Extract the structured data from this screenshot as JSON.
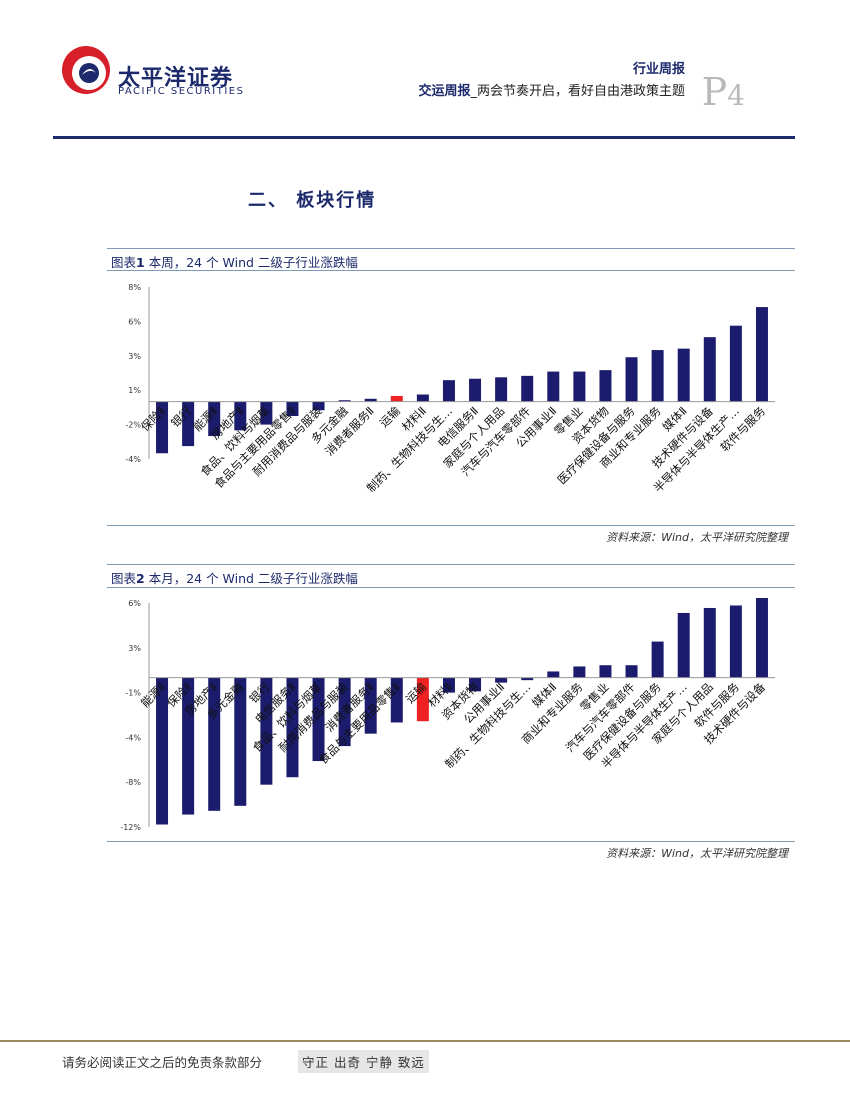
{
  "header": {
    "brand_cn": "太平洋证券",
    "brand_en": "PACIFIC SECURITIES",
    "report_type": "行业周报",
    "report_title_bold": "交运周报",
    "report_title_rest": "_两会节奏开启，看好自由港政策主题",
    "page_label": "P",
    "page_number": "4"
  },
  "section_heading": "二、 板块行情",
  "figure1": {
    "caption_prefix": "图表",
    "caption_num": "1",
    "caption_text": " 本周，24 个 Wind 二级子行业涨跌幅",
    "source": "资料来源：Wind，太平洋研究院整理"
  },
  "figure2": {
    "caption_prefix": "图表",
    "caption_num": "2",
    "caption_text": " 本月，24 个 Wind 二级子行业涨跌幅",
    "source": "资料来源：Wind，太平洋研究院整理"
  },
  "colors": {
    "bar": "#1c1c6e",
    "highlight": "#ee2222",
    "brand": "#1c2a6b",
    "logo_red": "#d71f2a"
  },
  "chart_data": [
    {
      "type": "bar",
      "title": "",
      "yticks": [
        "8%",
        "6%",
        "3%",
        "1%",
        "-2%",
        "-4%"
      ],
      "ylim": [
        -4,
        8
      ],
      "highlight_category": "运输",
      "categories": [
        "保险Ⅱ",
        "银行",
        "能源Ⅱ",
        "房地产Ⅱ",
        "食品、饮料与烟草",
        "食品与主要用品零售Ⅱ",
        "耐用消费品与服装",
        "多元金融",
        "消费者服务Ⅱ",
        "运输",
        "材料Ⅱ",
        "制药、生物科技与生…",
        "电信服务Ⅱ",
        "家庭与个人用品",
        "汽车与汽车零部件",
        "公用事业Ⅱ",
        "零售业",
        "资本货物",
        "医疗保健设备与服务",
        "商业和专业服务",
        "媒体Ⅱ",
        "技术硬件与设备",
        "半导体与半导体生产…",
        "软件与服务"
      ],
      "values": [
        -3.6,
        -3.1,
        -2.4,
        -2.0,
        -1.6,
        -1.0,
        -0.6,
        0.1,
        0.2,
        0.4,
        0.5,
        1.5,
        1.6,
        1.7,
        1.8,
        2.1,
        2.1,
        2.2,
        3.1,
        3.6,
        3.7,
        4.5,
        5.3,
        6.6
      ]
    },
    {
      "type": "bar",
      "title": "",
      "yticks": [
        "6%",
        "3%",
        "-1%",
        "-4%",
        "-8%",
        "-12%"
      ],
      "ylim": [
        -12,
        6
      ],
      "highlight_category": "运输",
      "categories": [
        "能源Ⅱ",
        "保险Ⅱ",
        "房地产Ⅱ",
        "多元金融",
        "银行",
        "电信服务Ⅱ",
        "食品、饮料与烟草",
        "耐用消费品与服装",
        "消费者服务Ⅱ",
        "食品与主要用品零售Ⅱ",
        "运输",
        "材料Ⅱ",
        "资本货物",
        "公用事业Ⅱ",
        "制药、生物科技与生…",
        "媒体Ⅱ",
        "商业和专业服务",
        "零售业",
        "汽车与汽车零部件",
        "医疗保健设备与服务",
        "半导体与半导体生产…",
        "家庭与个人用品",
        "软件与服务",
        "技术硬件与设备"
      ],
      "values": [
        -11.8,
        -11.0,
        -10.7,
        -10.3,
        -8.6,
        -8.0,
        -6.7,
        -5.5,
        -4.5,
        -3.6,
        -3.5,
        -1.2,
        -1.1,
        -0.4,
        -0.2,
        0.5,
        0.9,
        1.0,
        1.0,
        2.9,
        5.2,
        5.6,
        5.8,
        6.4
      ]
    }
  ],
  "footer": {
    "disclaimer": "请务必阅读正文之后的免责条款部分",
    "motto": "守正 出奇 宁静 致远"
  }
}
